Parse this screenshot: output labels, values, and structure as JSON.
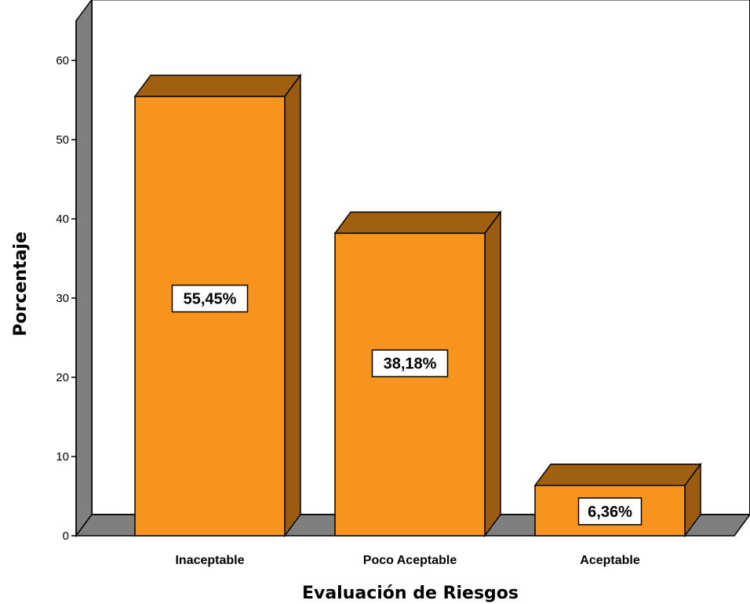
{
  "chart_data": {
    "type": "bar",
    "style": "3d",
    "categories": [
      "Inaceptable",
      "Poco Aceptable",
      "Aceptable"
    ],
    "values": [
      55.45,
      38.18,
      6.36
    ],
    "data_labels": [
      "55,45%",
      "38,18%",
      "6,36%"
    ],
    "xlabel": "Evaluación de Riesgos",
    "ylabel": "Porcentaje",
    "yticks": [
      0,
      10,
      20,
      30,
      40,
      50,
      60
    ],
    "ylim": [
      0,
      65
    ],
    "grid": false,
    "colors": {
      "bar_front": "#f7941d",
      "bar_top": "#a0600f",
      "bar_side": "#9c5c10",
      "wall": "#ffffff",
      "floor": "#7f7f7f",
      "left_wall": "#7f7f7f"
    }
  }
}
